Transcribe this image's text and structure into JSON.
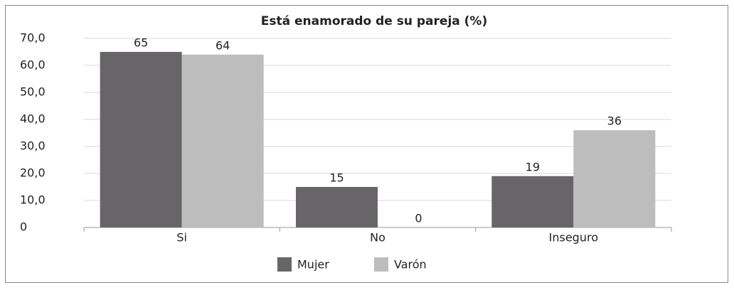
{
  "chart_data": {
    "type": "bar",
    "title": "Está enamorado de su pareja (%)",
    "categories": [
      "Si",
      "No",
      "Inseguro"
    ],
    "series": [
      {
        "name": "Mujer",
        "color": "#676567",
        "values": [
          65,
          15,
          19
        ]
      },
      {
        "name": "Varón",
        "color": "#bdbdbd",
        "values": [
          64,
          0,
          36
        ]
      }
    ],
    "ylim": [
      0,
      70
    ],
    "yticks": [
      0,
      {
        "value": 10,
        "label": "10,0"
      },
      {
        "value": 20,
        "label": "20,0"
      },
      {
        "value": 30,
        "label": "30,0"
      },
      {
        "value": 40,
        "label": "40,0"
      },
      {
        "value": 50,
        "label": "50,0"
      },
      {
        "value": 60,
        "label": "60,0"
      },
      {
        "value": 70,
        "label": "70,0"
      }
    ],
    "grid": true
  }
}
